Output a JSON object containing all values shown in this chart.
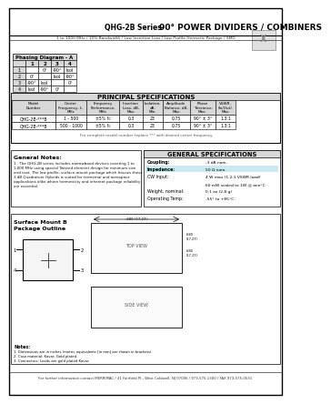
{
  "title_series": "QHG-2B Series",
  "title_main": "90° POWER DIVIDERS / COMBINERS",
  "subtitle": "1 to 1000 MHz / 10% Bandwidth / Low Insertion Loss / Low Profile Hermetic Package / SMD",
  "white": "#ffffff",
  "light_gray": "#d8d8d8",
  "med_gray": "#b0b0b0",
  "phasing_title": "Phasing Diagram - A",
  "phasing_cols": [
    "",
    "1",
    "2",
    "3",
    "4"
  ],
  "phasing_rows": [
    [
      "1",
      "",
      "0°",
      "-90°",
      "Isol"
    ],
    [
      "2",
      "0°",
      "",
      "Isol",
      "-90°"
    ],
    [
      "3",
      "-90°",
      "Isol",
      "",
      "0°"
    ],
    [
      "4",
      "Isol",
      "-90°",
      "0°",
      ""
    ]
  ],
  "principal_title": "PRINCIPAL SPECIFICATIONS",
  "spec_headers": [
    "Model\nNumber",
    "Center\nFrequency, f₀\nMHz",
    "Frequency\nPerformance,\nMHz",
    "Insertion\nLoss, dB,\nMax.",
    "Isolation,\ndB,\nMin.",
    "Amplitude\nBalance, dB,\nMax.",
    "Phase\nTolerance,\nMax.",
    "VSWR,\n(In/Out)\nMax."
  ],
  "spec_col_widths": [
    48,
    34,
    36,
    26,
    22,
    30,
    28,
    22
  ],
  "spec_rows": [
    [
      "QHG-2B-***B",
      "1 - 500",
      "±5% f₀",
      "0.3",
      "23",
      "0.75",
      "90° ± 3°",
      "1.3:1"
    ],
    [
      "QHG-2B-***B",
      "500 - 1000",
      "±5% f₀",
      "0.3",
      "23",
      "0.75",
      "90° ± 3°",
      "1.3:1"
    ]
  ],
  "spec_note": "For complete model number replace *** with desired center frequency.",
  "general_notes_title": "General Notes:",
  "general_notes_lines": [
    "1.  The QHG-2B series includes narrowband devices covering 1 to",
    "1,000 MHz using special Twisted element design for minimum size",
    "and cost. The low profile, surface-mount package which houses these",
    "3 dB Quadrature Hybrids is suited for terrestrial and aerospace",
    "applications alike where hermeticity and inherent package reliability",
    "are essential."
  ],
  "gen_spec_title": "GENERAL SPECIFICATIONS",
  "gen_spec_rows": [
    [
      "Coupling:",
      "-3 dB nom."
    ],
    [
      "Impedance:",
      "50 Ω nom."
    ],
    [
      "CW Input:",
      "4 W max.(1.2:1 VSWR load)"
    ],
    [
      "",
      "60 mW scaled to 1W @ ann°C"
    ],
    [
      "Weight, nominal:",
      "0.1 oz (2.8 g)"
    ],
    [
      "Operating Temp:",
      "-55° to +85°C"
    ]
  ],
  "package_title_1": "Surface Mount B",
  "package_title_2": "Package Outline",
  "footer": "For further information contact MERRIMAC / 41 Fairfield Pl., West Caldwell, NJ 07006 / 973-575-1300 / FAX 973-575-0531"
}
